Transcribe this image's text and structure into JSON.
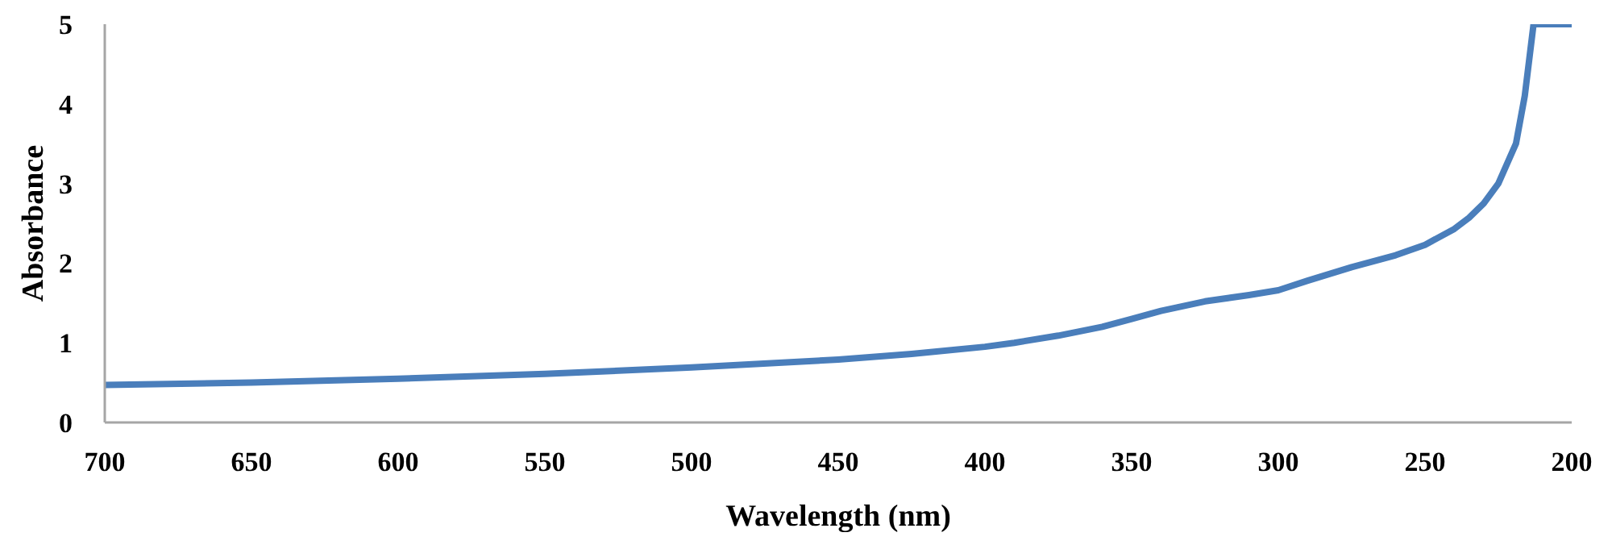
{
  "chart_data": {
    "type": "line",
    "xlabel": "Wavelength (nm)",
    "ylabel": "Absorbance",
    "x": [
      700,
      650,
      600,
      550,
      500,
      450,
      425,
      400,
      390,
      375,
      360,
      350,
      340,
      325,
      310,
      300,
      290,
      275,
      260,
      250,
      240,
      235,
      230,
      225,
      222,
      219,
      216,
      213,
      200
    ],
    "series": [
      {
        "color": "#4a7ebb",
        "values": [
          0.47,
          0.5,
          0.55,
          0.61,
          0.69,
          0.79,
          0.86,
          0.95,
          1.0,
          1.09,
          1.2,
          1.3,
          1.4,
          1.52,
          1.6,
          1.66,
          1.78,
          1.95,
          2.1,
          2.23,
          2.43,
          2.57,
          2.75,
          3.0,
          3.25,
          3.5,
          4.1,
          5,
          5
        ]
      }
    ],
    "xlim": [
      700,
      200
    ],
    "xticks": [
      700,
      650,
      600,
      550,
      500,
      450,
      400,
      350,
      300,
      250,
      200
    ],
    "ylim": [
      0,
      5
    ],
    "yticks": [
      0,
      1,
      2,
      3,
      4,
      5
    ],
    "grid": false,
    "legend": false,
    "marker": "none",
    "line_style": "solid"
  }
}
